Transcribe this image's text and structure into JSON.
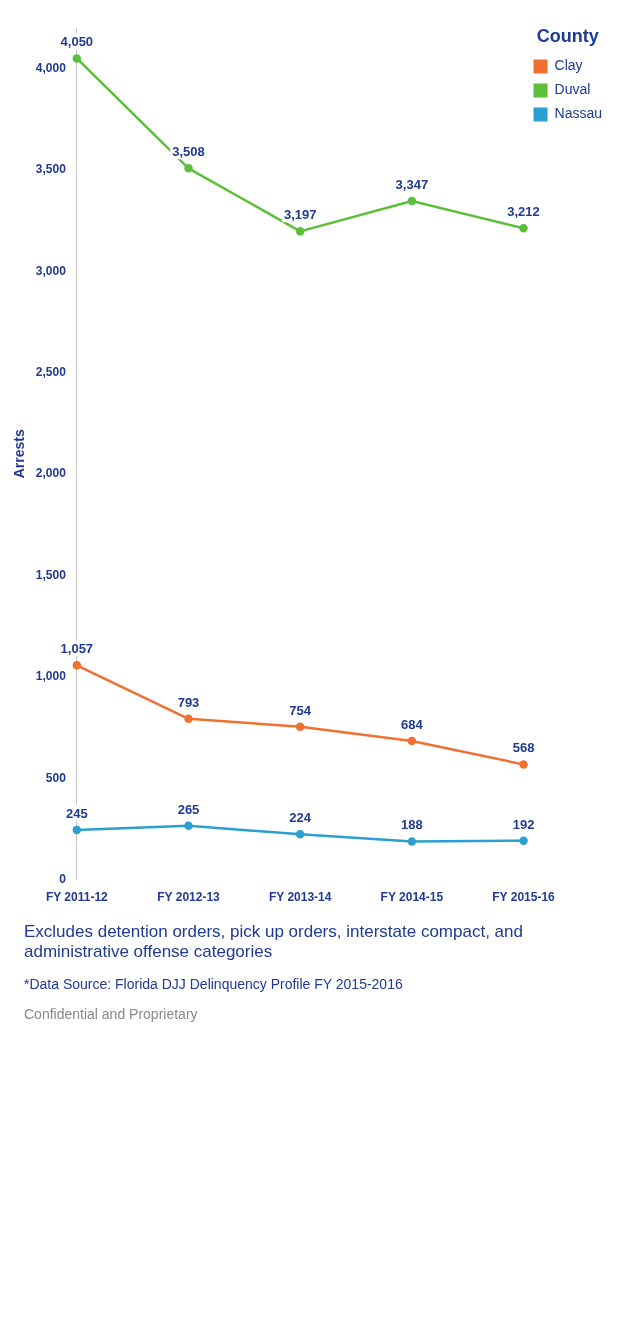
{
  "chart_data": {
    "type": "line",
    "ylabel": "Arrests",
    "legend_title": "County",
    "legend": "right",
    "marker": "circle",
    "data_labels": true,
    "grid": false,
    "categories": [
      "FY 2011-12",
      "FY 2012-13",
      "FY 2013-14",
      "FY 2014-15",
      "FY 2015-16"
    ],
    "ylim": [
      0,
      4200
    ],
    "yticks": [
      {
        "value": 0,
        "label": "0"
      },
      {
        "value": 500,
        "label": "500"
      },
      {
        "value": 1000,
        "label": "1,000"
      },
      {
        "value": 1500,
        "label": "1,500"
      },
      {
        "value": 2000,
        "label": "2,000"
      },
      {
        "value": 2500,
        "label": "2,500"
      },
      {
        "value": 3000,
        "label": "3,000"
      },
      {
        "value": 3500,
        "label": "3,500"
      },
      {
        "value": 4000,
        "label": "4,000"
      }
    ],
    "series": [
      {
        "name": "Clay",
        "color": "#f07030",
        "values": [
          1057,
          793,
          754,
          684,
          568
        ],
        "value_labels": [
          "1,057",
          "793",
          "754",
          "684",
          "568"
        ]
      },
      {
        "name": "Duval",
        "color": "#5cbf3a",
        "values": [
          4050,
          3508,
          3197,
          3347,
          3212
        ],
        "value_labels": [
          "4,050",
          "3,508",
          "3,197",
          "3,347",
          "3,212"
        ]
      },
      {
        "name": "Nassau",
        "color": "#2a9fd0",
        "values": [
          245,
          265,
          224,
          188,
          192
        ],
        "value_labels": [
          "245",
          "265",
          "224",
          "188",
          "192"
        ]
      }
    ],
    "annotations": [
      "Excludes detention orders, pick up orders, interstate compact, and administrative offense categories",
      "*Data Source: Florida DJJ Delinquency Profile FY 2015-2016",
      "Confidential and Proprietary"
    ]
  }
}
